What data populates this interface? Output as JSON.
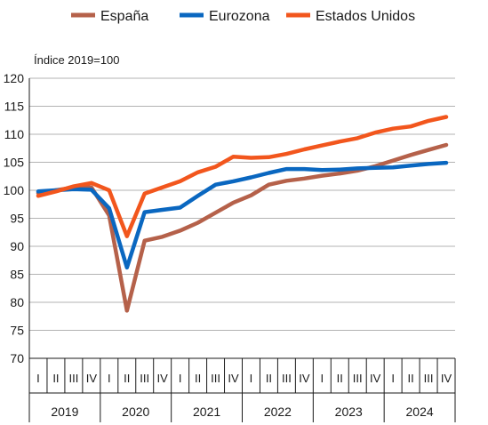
{
  "chart_data": {
    "type": "line",
    "ylabel": "Índice 2019=100",
    "ylim": [
      70,
      120
    ],
    "yticks": [
      "70",
      "75",
      "80",
      "85",
      "90",
      "95",
      "100",
      "105",
      "110",
      "115",
      "120"
    ],
    "grid": true,
    "legend_position": "top",
    "quarters": [
      "I",
      "II",
      "III",
      "IV",
      "I",
      "II",
      "III",
      "IV",
      "I",
      "II",
      "III",
      "IV",
      "I",
      "II",
      "III",
      "IV",
      "I",
      "II",
      "III",
      "IV",
      "I",
      "II",
      "III",
      "IV"
    ],
    "years": [
      "2019",
      "2020",
      "2021",
      "2022",
      "2023",
      "2024"
    ],
    "series": [
      {
        "name": "España",
        "color": "#b5614a",
        "values": [
          99.5,
          100.0,
          100.5,
          100.5,
          95.5,
          78.5,
          91.0,
          91.7,
          92.8,
          94.2,
          96.0,
          97.8,
          99.1,
          101.0,
          101.7,
          102.1,
          102.6,
          103.0,
          103.5,
          104.3,
          105.3,
          106.3,
          107.2,
          108.1
        ]
      },
      {
        "name": "Eurozona",
        "color": "#0a67c0",
        "values": [
          99.8,
          100.0,
          100.2,
          100.1,
          96.8,
          86.2,
          96.1,
          96.5,
          96.9,
          99.0,
          101.0,
          101.6,
          102.3,
          103.1,
          103.8,
          103.8,
          103.6,
          103.7,
          103.9,
          104.0,
          104.1,
          104.4,
          104.7,
          104.9
        ]
      },
      {
        "name": "Estados Unidos",
        "color": "#f2561d",
        "values": [
          99.0,
          99.8,
          100.7,
          101.3,
          100.0,
          91.8,
          99.4,
          100.5,
          101.6,
          103.2,
          104.2,
          106.0,
          105.8,
          105.9,
          106.5,
          107.3,
          108.0,
          108.7,
          109.3,
          110.3,
          111.0,
          111.4,
          112.4,
          113.1
        ]
      }
    ]
  }
}
